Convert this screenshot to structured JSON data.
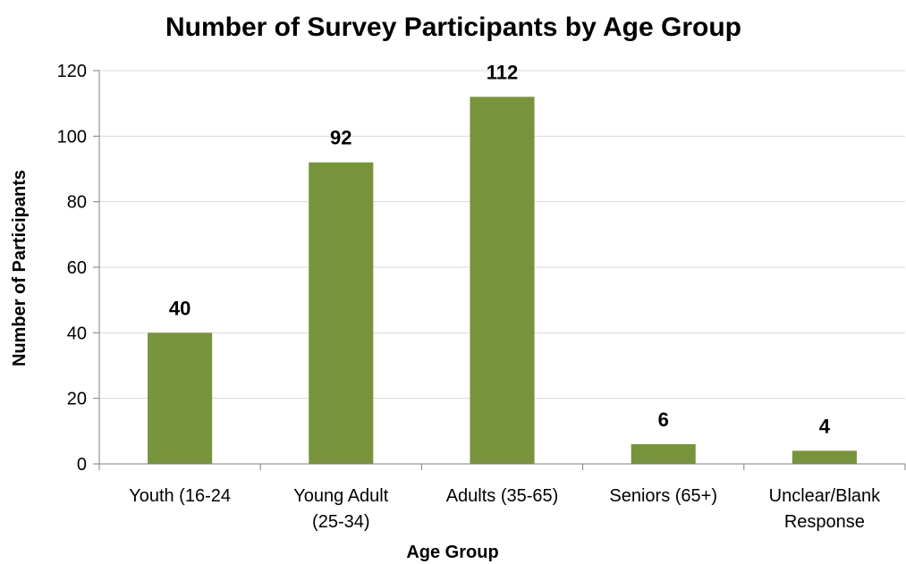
{
  "chart_data": {
    "type": "bar",
    "title": "Number of Survey Participants by Age Group",
    "xlabel": "Age Group",
    "ylabel": "Number of Participants",
    "categories": [
      [
        "Youth (16-24"
      ],
      [
        "Young Adult",
        "(25-34)"
      ],
      [
        "Adults (35-65)"
      ],
      [
        "Seniors (65+)"
      ],
      [
        "Unclear/Blank",
        "Response"
      ]
    ],
    "values": [
      40,
      92,
      112,
      6,
      4
    ],
    "data_labels": [
      "40",
      "92",
      "112",
      "6",
      "4"
    ],
    "ylim": [
      0,
      120
    ],
    "yticks": [
      0,
      20,
      40,
      60,
      80,
      100,
      120
    ],
    "grid": true,
    "legend": "none",
    "colors": {
      "bar": "#77933c",
      "grid": "#d9d9d9",
      "axis": "#7f7f7f"
    }
  }
}
